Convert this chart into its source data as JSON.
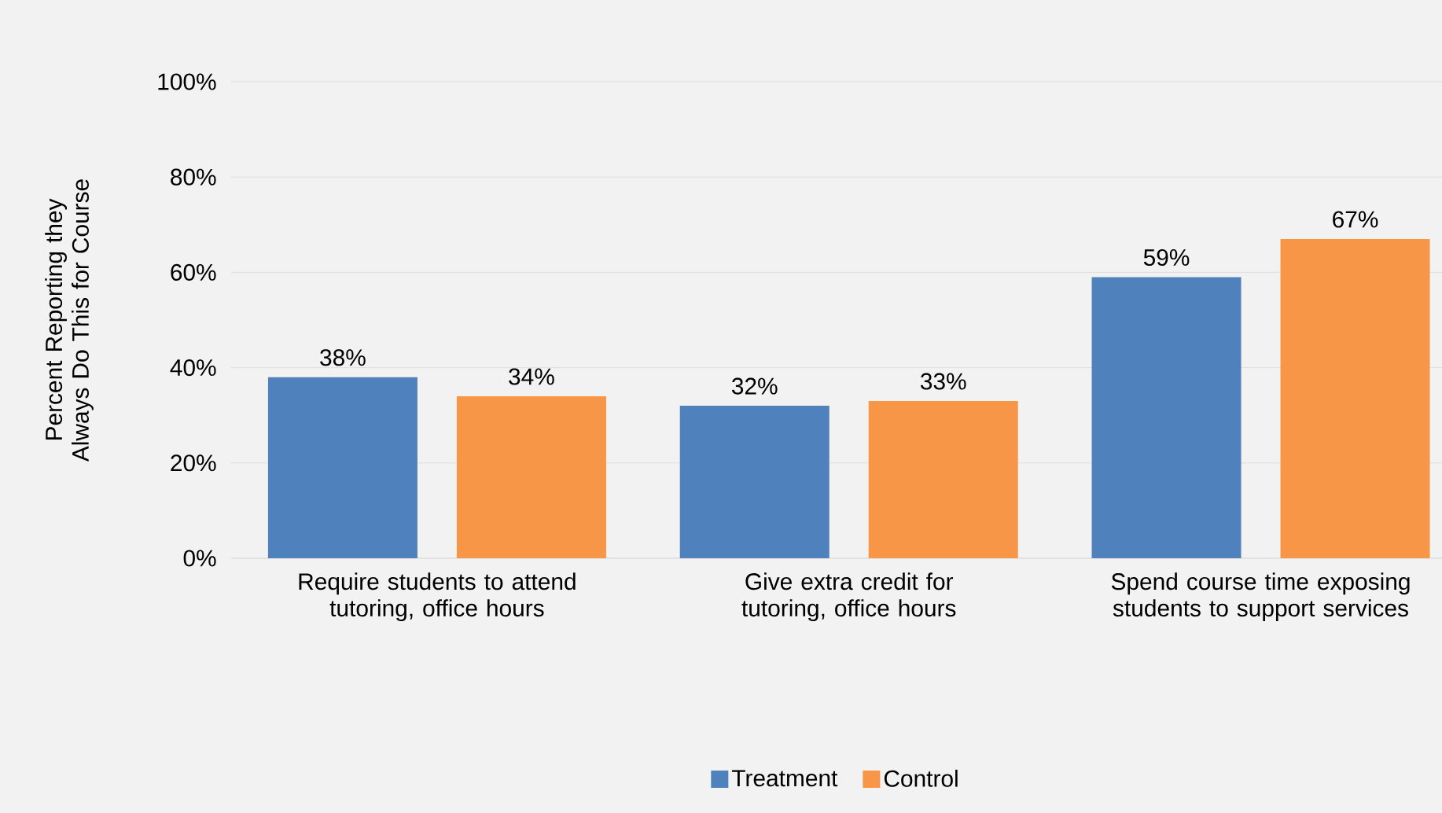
{
  "chart_data": {
    "type": "bar",
    "ylabel": "Percent Reporting they Always Do This for Course",
    "categories": [
      "Require students to attend tutoring, office hours",
      "Give extra credit for tutoring, office hours",
      "Spend course time exposing students to support services"
    ],
    "series": [
      {
        "name": "Treatment",
        "color": "#4f81bd",
        "values": [
          38,
          32,
          59
        ],
        "value_labels": [
          "38%",
          "32%",
          "59%"
        ]
      },
      {
        "name": "Control",
        "color": "#f79646",
        "values": [
          34,
          33,
          67
        ],
        "value_labels": [
          "34%",
          "33%",
          "67%"
        ]
      }
    ],
    "ylim": [
      0,
      100
    ],
    "yticks": [
      {
        "value": 0,
        "label": "0%"
      },
      {
        "value": 20,
        "label": "20%"
      },
      {
        "value": 40,
        "label": "40%"
      },
      {
        "value": 60,
        "label": "60%"
      },
      {
        "value": 80,
        "label": "80%"
      },
      {
        "value": 100,
        "label": "100%"
      }
    ],
    "grid": "y",
    "legend": "bottom"
  }
}
